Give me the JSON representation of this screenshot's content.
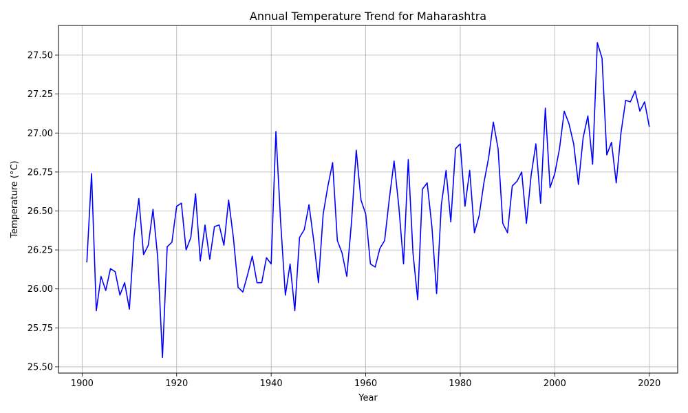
{
  "chart_data": {
    "type": "line",
    "title": "Annual Temperature Trend for Maharashtra",
    "xlabel": "Year",
    "ylabel": "Temperature (°C)",
    "xlim": [
      1895,
      2026
    ],
    "ylim": [
      25.46,
      27.69
    ],
    "x_ticks": [
      1900,
      1920,
      1940,
      1960,
      1980,
      2000,
      2020
    ],
    "y_ticks": [
      25.5,
      25.75,
      26.0,
      26.25,
      26.5,
      26.75,
      27.0,
      27.25,
      27.5
    ],
    "y_tick_labels": [
      "25.50",
      "25.75",
      "26.00",
      "26.25",
      "26.50",
      "26.75",
      "27.00",
      "27.25",
      "27.50"
    ],
    "grid": true,
    "line_color": "#0000ff",
    "series": [
      {
        "x": [
          1901,
          1902,
          1903,
          1904,
          1905,
          1906,
          1907,
          1908,
          1909,
          1910,
          1911,
          1912,
          1913,
          1914,
          1915,
          1916,
          1917,
          1918,
          1919,
          1920,
          1921,
          1922,
          1923,
          1924,
          1925,
          1926,
          1927,
          1928,
          1929,
          1930,
          1931,
          1932,
          1933,
          1934,
          1935,
          1936,
          1937,
          1938,
          1939,
          1940,
          1941,
          1942,
          1943,
          1944,
          1945,
          1946,
          1947,
          1948,
          1949,
          1950,
          1951,
          1952,
          1953,
          1954,
          1955,
          1956,
          1957,
          1958,
          1959,
          1960,
          1961,
          1962,
          1963,
          1964,
          1965,
          1966,
          1967,
          1968,
          1969,
          1970,
          1971,
          1972,
          1973,
          1974,
          1975,
          1976,
          1977,
          1978,
          1979,
          1980,
          1981,
          1982,
          1983,
          1984,
          1985,
          1986,
          1987,
          1988,
          1989,
          1990,
          1991,
          1992,
          1993,
          1994,
          1995,
          1996,
          1997,
          1998,
          1999,
          2000,
          2001,
          2002,
          2003,
          2004,
          2005,
          2006,
          2007,
          2008,
          2009,
          2010,
          2011,
          2012,
          2013,
          2014,
          2015,
          2016,
          2017,
          2018,
          2019,
          2020
        ],
        "values": [
          26.17,
          26.74,
          25.86,
          26.08,
          25.99,
          26.13,
          26.11,
          25.96,
          26.04,
          25.87,
          26.34,
          26.58,
          26.22,
          26.28,
          26.51,
          26.2,
          25.56,
          26.27,
          26.3,
          26.53,
          26.55,
          26.25,
          26.33,
          26.61,
          26.18,
          26.41,
          26.19,
          26.4,
          26.41,
          26.28,
          26.57,
          26.33,
          26.01,
          25.98,
          26.09,
          26.21,
          26.04,
          26.04,
          26.2,
          26.16,
          27.01,
          26.43,
          25.96,
          26.16,
          25.86,
          26.33,
          26.38,
          26.54,
          26.31,
          26.04,
          26.48,
          26.66,
          26.81,
          26.31,
          26.23,
          26.08,
          26.43,
          26.89,
          26.57,
          26.48,
          26.16,
          26.14,
          26.26,
          26.31,
          26.58,
          26.82,
          26.53,
          26.16,
          26.83,
          26.23,
          25.93,
          26.64,
          26.68,
          26.4,
          25.97,
          26.54,
          26.76,
          26.43,
          26.9,
          26.93,
          26.53,
          26.76,
          26.36,
          26.47,
          26.68,
          26.84,
          27.07,
          26.9,
          26.42,
          26.36,
          26.66,
          26.69,
          26.75,
          26.42,
          26.73,
          26.93,
          26.55,
          27.16,
          26.65,
          26.74,
          26.9,
          27.14,
          27.06,
          26.93,
          26.67,
          26.97,
          27.11,
          26.8,
          27.58,
          27.48,
          26.86,
          26.94,
          26.68,
          27.0,
          27.21,
          27.2,
          27.27,
          27.14,
          27.2,
          27.04
        ]
      }
    ]
  }
}
